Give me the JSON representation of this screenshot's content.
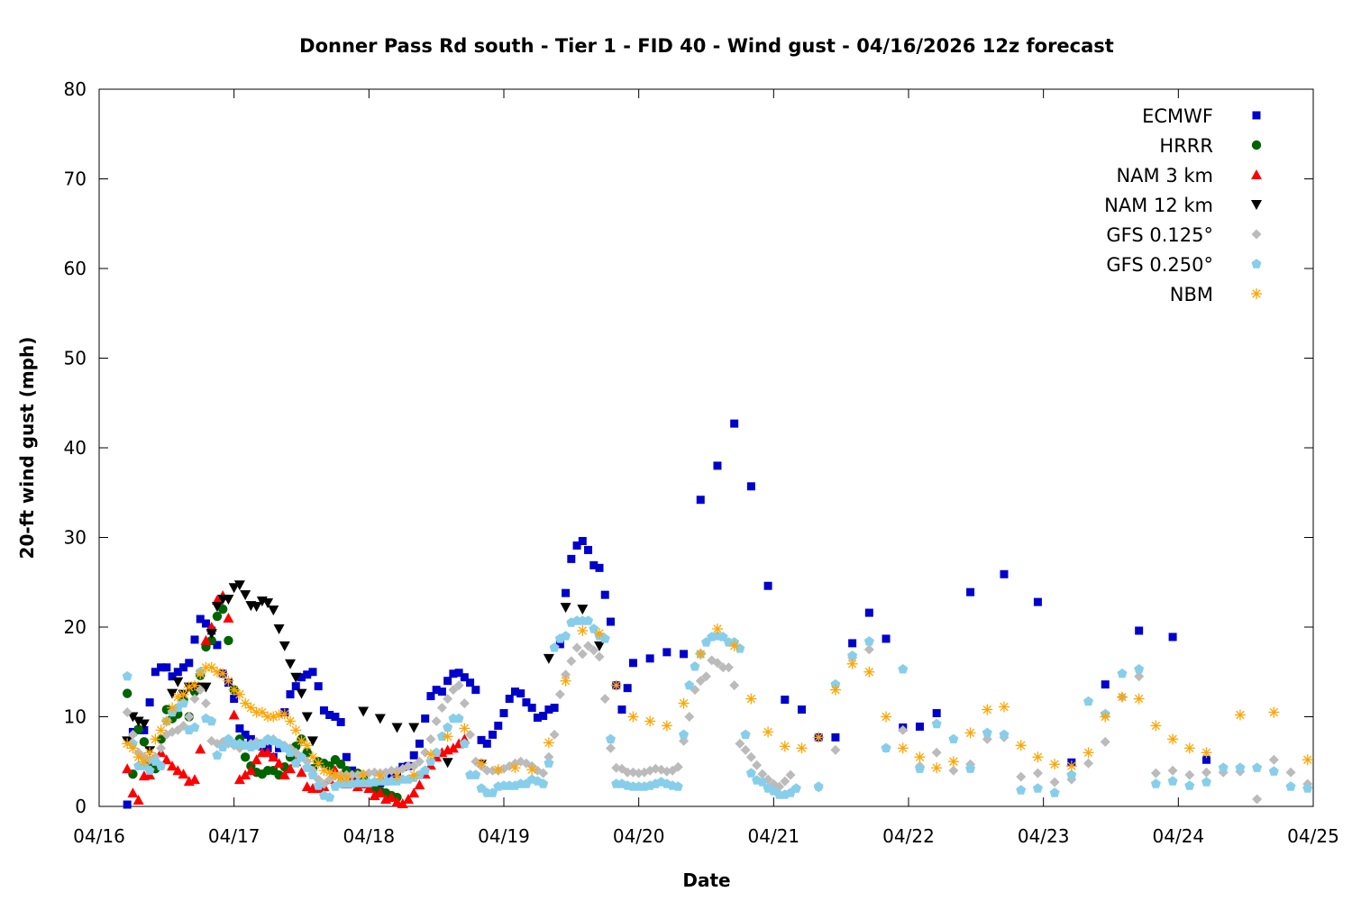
{
  "chart_data": {
    "type": "scatter",
    "title": "Donner Pass Rd south - Tier 1 - FID 40 - Wind gust - 04/16/2026 12z forecast",
    "xlabel": "Date",
    "ylabel": "20-ft wind gust (mph)",
    "xlim": [
      "04/16 00:00",
      "04/25 00:00"
    ],
    "ylim": [
      0,
      80
    ],
    "xticks": [
      "04/16",
      "04/17",
      "04/18",
      "04/19",
      "04/20",
      "04/21",
      "04/22",
      "04/23",
      "04/24",
      "04/25"
    ],
    "yticks": [
      0,
      10,
      20,
      30,
      40,
      50,
      60,
      70,
      80
    ],
    "grid": false,
    "legend_position": "top-right",
    "series": [
      {
        "name": "ECMWF",
        "marker": "square",
        "color": "#0000cc",
        "segments": [
          {
            "start": "04/16 05:00",
            "step_hours": 1,
            "values": [
              0.2,
              8.3,
              8.5,
              8.5,
              11.6,
              15,
              15.5,
              15.5,
              14.5,
              15,
              15.5,
              16,
              18.6,
              20.9,
              20.4,
              19.6,
              18,
              14.8,
              13.8,
              12,
              8.7,
              8,
              7.5,
              7,
              6.7,
              6.5,
              5.5,
              6.5,
              10.5,
              12.5,
              13.4,
              14.4,
              14.7,
              15,
              13.4,
              10.7,
              10.2,
              10,
              9.4,
              5.5,
              4,
              2.7,
              2.5,
              2.5,
              2.5,
              2.6,
              2.8,
              3.2,
              3.7,
              4.4,
              4.5,
              5.7,
              7,
              9.8,
              12.3,
              13,
              12.8,
              14,
              14.8,
              14.9,
              14.4,
              13.8,
              13,
              7.4,
              7,
              8,
              9,
              10.4,
              12,
              12.8,
              12.6,
              11.6,
              11,
              9.9,
              10.1,
              10.8,
              11,
              18.1,
              23.8,
              27.6,
              29.1,
              29.6,
              28.6,
              26.9,
              26.6,
              23.6,
              20.6,
              13.5,
              10.8,
              13.2,
              16
            ]
          },
          {
            "start": "04/20 02:00",
            "step_hours": 3,
            "values": [
              16.5,
              17.2,
              17,
              34.2,
              38,
              42.7,
              35.7,
              24.6,
              11.9,
              10.8,
              7.7,
              7.7,
              18.2,
              21.6,
              18.7,
              8.8,
              8.9,
              10.4
            ]
          },
          {
            "start": "04/22 11:00",
            "step_hours": 6,
            "values": [
              23.9,
              25.9,
              22.8,
              4.9,
              13.6,
              19.6,
              18.9,
              5.2
            ]
          }
        ]
      },
      {
        "name": "HRRR",
        "marker": "circle",
        "color": "#006400",
        "segments": [
          {
            "start": "04/16 05:00",
            "step_hours": 1,
            "values": [
              12.6,
              3.6,
              8.6,
              7.2,
              5,
              4.2,
              7.5,
              10.8,
              9.8,
              10.3,
              11.9,
              10,
              12.8,
              14.6,
              17.8,
              18.5,
              21.2,
              22,
              18.5,
              13,
              7.5,
              5.5,
              4.5,
              3.8,
              3.6,
              4,
              4,
              3.5,
              4.4,
              5.5,
              6.7,
              7.5,
              6,
              4.2,
              5,
              4.8,
              4.5,
              5.2,
              4.7,
              4,
              3.5,
              3.7,
              3.2,
              2.5,
              2,
              1.7,
              1.5,
              1.2,
              1
            ]
          }
        ]
      },
      {
        "name": "NAM 3 km",
        "marker": "triangle-up",
        "color": "#ff0000",
        "segments": [
          {
            "start": "04/16 05:00",
            "step_hours": 1,
            "values": [
              4.2,
              1.5,
              0.7,
              3.4,
              3.5,
              5.3,
              6,
              5.2,
              4.5,
              4,
              3.6,
              2.8,
              3,
              6.4,
              18.5,
              20,
              23,
              23.5,
              21,
              10.2,
              3,
              3.5,
              4,
              5.2,
              6,
              6,
              5.5,
              4.8,
              3.5,
              4.2,
              5,
              3.8,
              2.2,
              2,
              2,
              2.2,
              3,
              4,
              3,
              2.5,
              3,
              2.2,
              2.5,
              2,
              1.2,
              1.5,
              0.8,
              1,
              0.5,
              0.3,
              0.8,
              1.5,
              2.4,
              3.6,
              4.6,
              5.5,
              6,
              6.3,
              6.5,
              7,
              7.5
            ]
          }
        ]
      },
      {
        "name": "NAM 12 km",
        "marker": "triangle-down",
        "color": "#000000",
        "segments": [
          {
            "start": "04/16 05:00",
            "step_hours": 1,
            "values": [
              7.3,
              10,
              9.5,
              9.2,
              6.2,
              null,
              null,
              null,
              12.6,
              13.9,
              12.5,
              13.3,
              13.3,
              13.3,
              13.3,
              19.3,
              22.3,
              23.1,
              23.1,
              24.4,
              24.7,
              23.6,
              22.4,
              22.3,
              22.9,
              22.7,
              21.9,
              19.8,
              17.9,
              15.9,
              14.4,
              12.6,
              10,
              7.3
            ]
          },
          {
            "start": "04/17 23:00",
            "step_hours": 3,
            "values": [
              10.6,
              9.8,
              8.8,
              8.8,
              null,
              4.9,
              null,
              4.7,
              null,
              null,
              null,
              16.5,
              22.2,
              22,
              17.9
            ]
          }
        ]
      },
      {
        "name": "GFS 0.125°",
        "marker": "diamond",
        "color": "#bbbbbb",
        "segments": [
          {
            "start": "04/16 05:00",
            "step_hours": 1,
            "values": [
              10.5,
              8,
              6,
              5.5,
              5.2,
              5.5,
              6.5,
              8,
              8.3,
              8.5,
              9,
              10,
              12,
              13,
              11.5,
              7.3,
              7,
              7.2,
              7,
              6.8,
              6.5,
              6.8,
              7,
              7.2,
              7,
              7.3,
              7.5,
              7,
              6.8,
              6.5,
              6,
              5.5,
              5,
              4,
              3,
              2.5,
              3,
              3.4,
              3.5,
              3.5,
              3.5,
              3.5,
              3.6,
              3.7,
              3.8,
              3.7,
              3.8,
              4,
              4,
              4.2,
              4.5,
              4.5,
              5,
              6,
              7.5,
              9.5,
              11,
              12,
              13,
              13.5,
              11.5,
              8,
              5,
              4.5,
              4,
              4,
              4,
              4.2,
              4.5,
              4.8,
              5,
              4.8,
              4.5,
              4,
              3.7,
              5.5,
              8,
              12.5,
              14.7,
              16.2,
              17.7,
              17,
              17.9,
              17.4,
              16.7,
              12,
              6.5,
              4.3,
              4.2,
              3.8,
              3.8,
              3.7,
              3.8,
              4,
              4.2,
              4.1,
              3.9,
              4,
              4.4,
              7.3,
              10,
              13,
              14,
              14.5,
              16.3,
              16,
              15.5,
              15.5,
              13.5,
              7,
              6.3,
              5.5,
              4.6,
              3.6,
              3,
              2.5,
              2.2,
              2.8,
              3.5,
              2
            ]
          },
          {
            "start": "04/21 08:00",
            "step_hours": 3,
            "values": [
              2.1,
              6.3,
              16.6,
              17.5,
              6.5,
              8.5,
              4.5,
              6,
              4,
              4.7,
              7.5,
              7.7,
              3.3,
              3.7,
              2.7,
              3,
              4.8,
              7.2,
              12.2,
              14.5,
              3.7,
              4,
              3.5,
              3.8,
              3.8,
              3.9,
              0.8,
              5.2,
              3.8,
              2.5
            ]
          }
        ]
      },
      {
        "name": "GFS 0.250°",
        "marker": "pentagon",
        "color": "#87ceeb",
        "segments": [
          {
            "start": "04/16 05:00",
            "step_hours": 1,
            "values": [
              14.5,
              7,
              4.5,
              4.5,
              4,
              5,
              4.5,
              9.5,
              10.5,
              11,
              11.5,
              8.5,
              8.8,
              15,
              9.8,
              9.5,
              5.7,
              6.6,
              7.5,
              7,
              7,
              6.8,
              6.6,
              6.8,
              7,
              7.5,
              7.3,
              7,
              6.5,
              6,
              4.8,
              5.5,
              4.3,
              3.5,
              2.3,
              1.2,
              1,
              2.2,
              2.5,
              2.5,
              2.5,
              2.6,
              2.6,
              2.6,
              2.7,
              2.8,
              2.8,
              2.8,
              2.8,
              3,
              3,
              3.2,
              3.5,
              4,
              5,
              6,
              7.8,
              8.8,
              9.8,
              9.8,
              7,
              3.5,
              3.5,
              2,
              1.5,
              1.5,
              2.2,
              2.3,
              2.3,
              2.3,
              2.5,
              2.5,
              3,
              2.8,
              2.5,
              4.8,
              17.7,
              18.7,
              19,
              20.5,
              20.7,
              20.7,
              20.7,
              19.8,
              19,
              18.7,
              7.5,
              2.5,
              2.5,
              2.3,
              2.2,
              2.2,
              2.2,
              2.3,
              2.5,
              2.7,
              2.5,
              2.3,
              2.2,
              8,
              13.5,
              15.6,
              17,
              18.3,
              18.9,
              19,
              18.9,
              18.3,
              18.3,
              17.6,
              8,
              3.7,
              2.9,
              2.7,
              2,
              1.7,
              1.3,
              1.3,
              1.5,
              2
            ]
          },
          {
            "start": "04/21 08:00",
            "step_hours": 3,
            "values": [
              2.2,
              13.6,
              16.8,
              18.4,
              6.5,
              15.3,
              4.2,
              9.2,
              7.5,
              4.2,
              8.2,
              8,
              1.8,
              2,
              1.5,
              3.5,
              11.7,
              10.3,
              14.8,
              15.3,
              2.5,
              2.8,
              2.3,
              2.7,
              4.3,
              4.3,
              4.3,
              3.9,
              2.2,
              2
            ]
          }
        ]
      },
      {
        "name": "NBM",
        "marker": "asterisk",
        "color": "#ffa500",
        "segments": [
          {
            "start": "04/16 05:00",
            "step_hours": 1,
            "values": [
              7,
              6.5,
              5.5,
              5,
              6,
              7.5,
              8.5,
              9.5,
              11,
              12.2,
              12.5,
              13.3,
              13.5,
              14.8,
              15.5,
              15.5,
              15,
              14.8,
              14,
              13,
              12.5,
              11.5,
              11,
              10.5,
              10.5,
              10,
              10,
              10.2,
              10.3,
              9.5,
              8.5,
              7.3,
              6.8,
              5.5,
              4.8,
              4,
              3.8,
              3.5,
              3.2,
              3.2
            ]
          },
          {
            "start": "04/17 23:00",
            "step_hours": 3,
            "values": [
              3.5,
              3.4,
              3.4,
              3.5,
              5.8,
              7.8,
              8.7,
              4.8,
              4.1,
              4.3,
              4.1,
              7.1,
              14,
              19.6,
              19.3,
              13.5,
              10,
              9.5,
              9,
              11.5,
              17,
              19.8,
              17.9,
              12,
              8.3,
              6.7,
              6.5,
              7.7,
              13,
              15.9,
              15,
              10,
              6.5,
              5.5,
              4.3,
              5,
              8.2,
              10.8,
              11.1,
              6.8,
              5.5,
              4.7,
              4.5,
              6,
              10,
              12.2,
              12,
              9,
              7.5,
              6.5,
              6,
              null,
              10.2,
              null,
              10.5,
              null,
              5.2
            ]
          }
        ]
      }
    ]
  }
}
